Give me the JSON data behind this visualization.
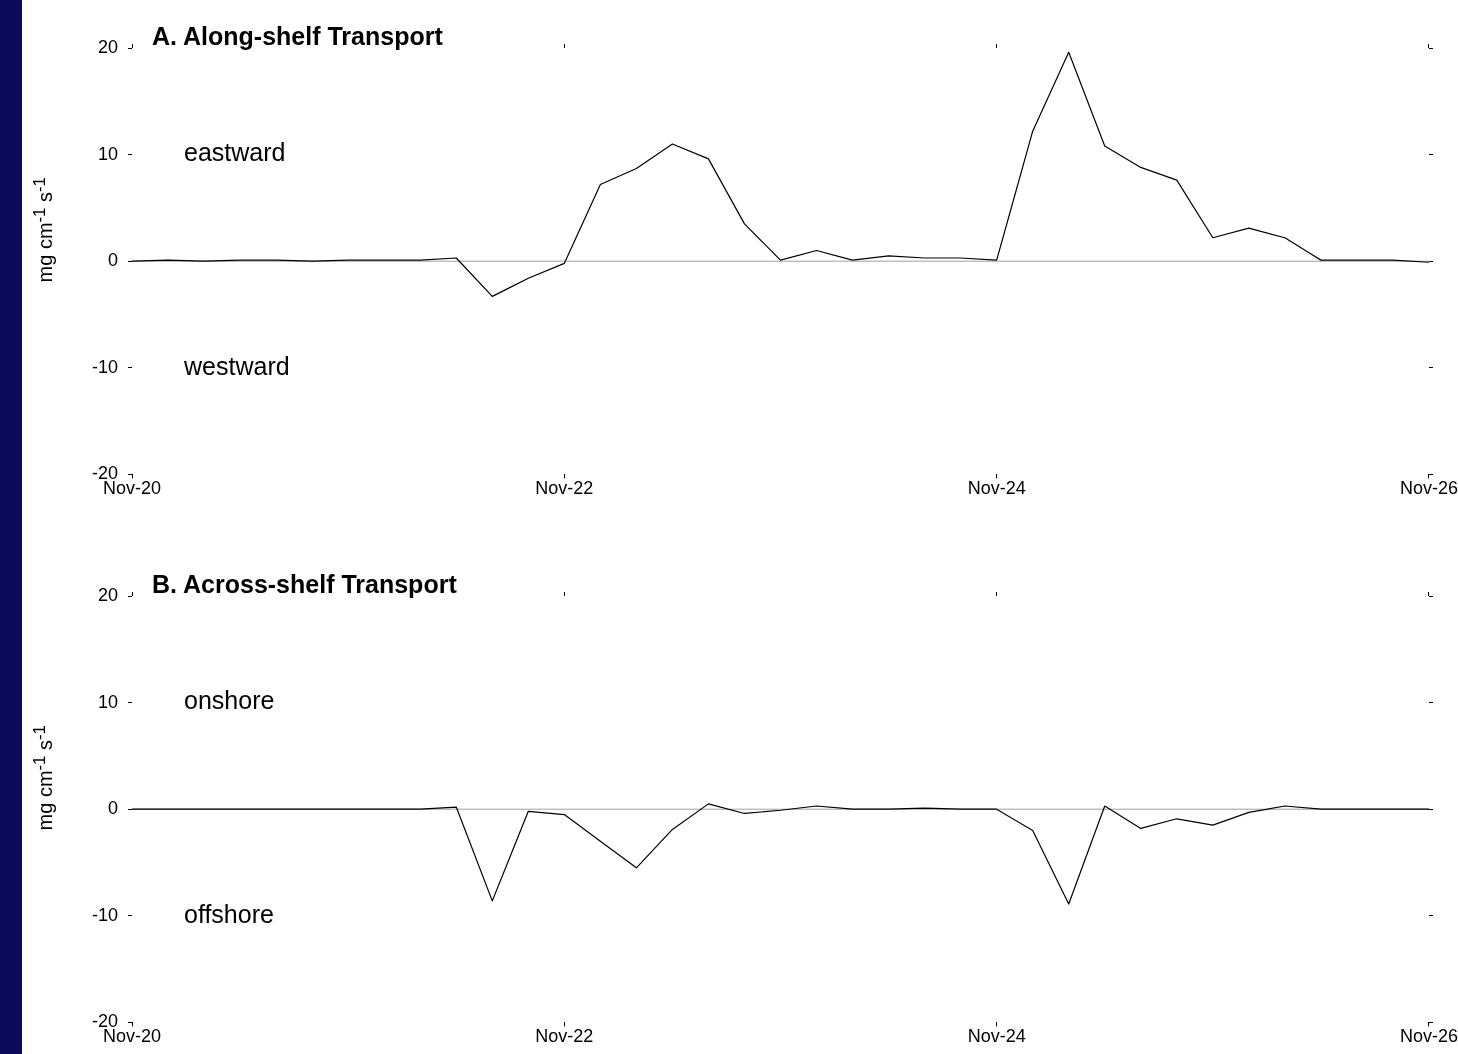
{
  "chart_data": [
    {
      "type": "line",
      "title": "A. Along-shelf Transport",
      "ylabel": "mg cm$^{-1}$ s$^{-1}$",
      "categories": [
        "Nov-20",
        null,
        null,
        null,
        null,
        null,
        null,
        null,
        null,
        null,
        null,
        null,
        "Nov-22",
        null,
        null,
        null,
        null,
        null,
        null,
        null,
        null,
        null,
        null,
        null,
        "Nov-24",
        null,
        null,
        null,
        null,
        null,
        null,
        null,
        null,
        null,
        null,
        null,
        "Nov-26"
      ],
      "series": [
        {
          "color": "#000000",
          "values": [
            0,
            0.1,
            0,
            0.1,
            0.1,
            0,
            0.1,
            0.1,
            0.1,
            0.3,
            -3.3,
            -1.6,
            -0.2,
            7.2,
            8.7,
            11,
            9.6,
            3.5,
            0.1,
            1.0,
            0.1,
            0.5,
            0.3,
            0.3,
            0.1,
            12.2,
            19.6,
            10.8,
            8.8,
            7.6,
            2.2,
            3.1,
            2.2,
            0.1,
            0.1,
            0.1,
            -0.1
          ]
        }
      ],
      "ylim": [
        -20,
        20
      ],
      "yticks": [
        -20,
        -10,
        0,
        10,
        20
      ],
      "ref_lines": [
        {
          "axis": "y",
          "value": 0,
          "color": "#a0a0a0"
        }
      ],
      "annotations": [
        "eastward",
        "westward"
      ],
      "marker": "none",
      "line_style": "solid",
      "legend": false,
      "grid": false
    },
    {
      "type": "line",
      "title": "B. Across-shelf Transport",
      "ylabel": "mg cm$^{-1}$ s$^{-1}$",
      "categories": [
        "Nov-20",
        null,
        null,
        null,
        null,
        null,
        null,
        null,
        null,
        null,
        null,
        null,
        "Nov-22",
        null,
        null,
        null,
        null,
        null,
        null,
        null,
        null,
        null,
        null,
        null,
        "Nov-24",
        null,
        null,
        null,
        null,
        null,
        null,
        null,
        null,
        null,
        null,
        null,
        "Nov-26"
      ],
      "series": [
        {
          "color": "#000000",
          "values": [
            0,
            0,
            0,
            0,
            0,
            0,
            0,
            0,
            0,
            0.2,
            -8.6,
            -0.2,
            -0.5,
            -3.0,
            -5.5,
            -1.9,
            0.5,
            -0.4,
            -0.1,
            0.3,
            0,
            0,
            0.1,
            0,
            0,
            -2.0,
            -8.9,
            0.3,
            -1.8,
            -0.9,
            -1.5,
            -0.3,
            0.3,
            0,
            0,
            0,
            0
          ]
        }
      ],
      "ylim": [
        -20,
        20
      ],
      "yticks": [
        -20,
        -10,
        0,
        10,
        20
      ],
      "ref_lines": [
        {
          "axis": "y",
          "value": 0,
          "color": "#a0a0a0"
        }
      ],
      "annotations": [
        "onshore",
        "offshore"
      ],
      "marker": "none",
      "line_style": "solid",
      "legend": false,
      "grid": false
    }
  ]
}
